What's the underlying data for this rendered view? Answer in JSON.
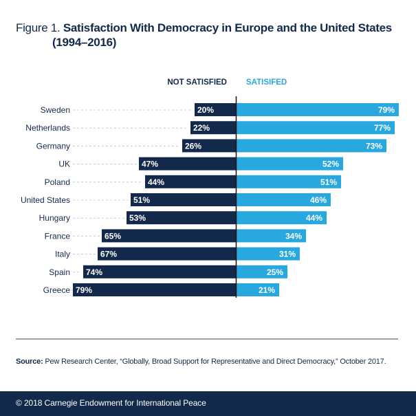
{
  "figure": {
    "label": "Figure 1.",
    "title_line1": "Satisfaction With Democracy in Europe and the United States",
    "title_line2": "(1994–2016)"
  },
  "colors": {
    "not_satisfied": "#13294b",
    "satisfied": "#29a8e0",
    "text_dark": "#13294b",
    "guide": "#c8ccd2"
  },
  "chart_data": {
    "type": "bar",
    "orientation": "horizontal-diverging",
    "title": "Satisfaction With Democracy in Europe and the United States (1994–2016)",
    "xlabel": "",
    "ylabel": "",
    "xlim": [
      0,
      100
    ],
    "grid": false,
    "legend": "top-center",
    "categories": [
      "Sweden",
      "Netherlands",
      "Germany",
      "UK",
      "Poland",
      "United States",
      "Hungary",
      "France",
      "Italy",
      "Spain",
      "Greece"
    ],
    "series": [
      {
        "name": "NOT SATISFIED",
        "direction": "left",
        "values": [
          20,
          22,
          26,
          47,
          44,
          51,
          53,
          65,
          67,
          74,
          79
        ]
      },
      {
        "name": "SATISIFED",
        "direction": "right",
        "values": [
          79,
          77,
          73,
          52,
          51,
          46,
          44,
          34,
          31,
          25,
          21
        ]
      }
    ],
    "value_suffix": "%"
  },
  "source": {
    "label": "Source:",
    "text": " Pew Research Center, “Globally, Broad Support for Representative and Direct Democracy,” October 2017."
  },
  "footer": {
    "copyright": "© 2018 Carnegie Endowment for International Peace"
  }
}
